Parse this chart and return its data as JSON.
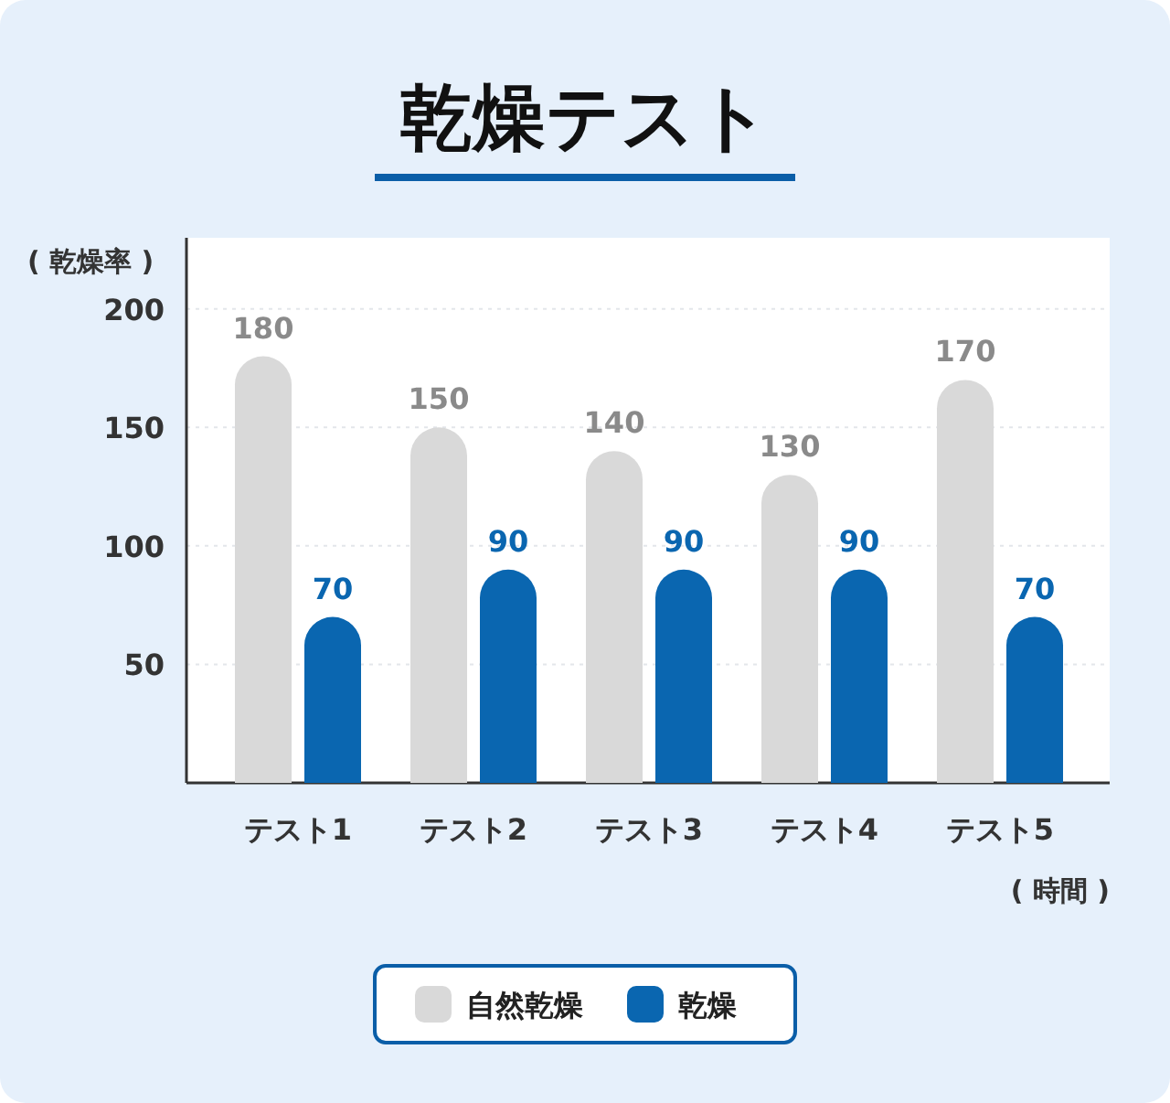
{
  "chart_data": {
    "type": "bar",
    "title": "乾燥テスト",
    "xlabel": "( 時間 )",
    "ylabel": "( 乾燥率 )",
    "categories": [
      "テスト1",
      "テスト2",
      "テスト3",
      "テスト4",
      "テスト5"
    ],
    "series": [
      {
        "name": "自然乾燥",
        "color": "#d9d9d9",
        "values": [
          180,
          150,
          140,
          130,
          170
        ]
      },
      {
        "name": "乾燥",
        "color": "#0a66b0",
        "values": [
          70,
          90,
          90,
          90,
          70
        ]
      }
    ],
    "ylim": [
      0,
      230
    ],
    "yticks": [
      50,
      100,
      150,
      200
    ],
    "grid": "y",
    "legend": "bottom",
    "data_labels": true
  }
}
